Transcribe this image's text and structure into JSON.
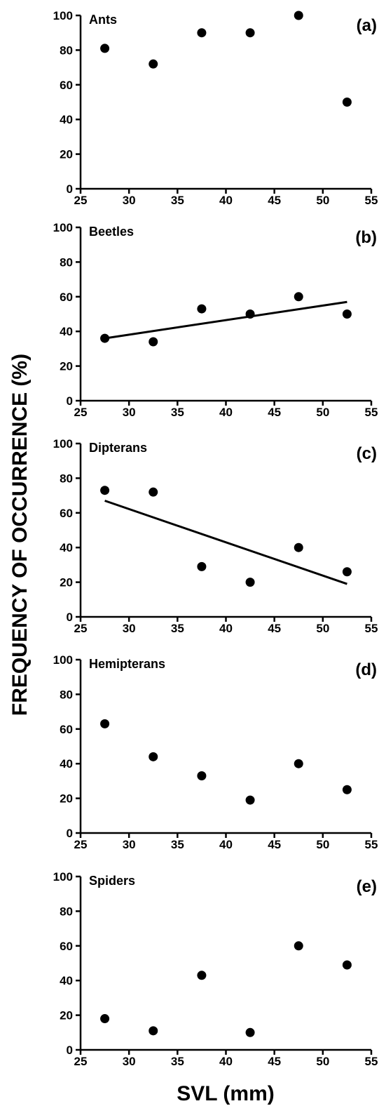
{
  "ylabel": "FREQUENCY OF OCCURRENCE (%)",
  "xlabel": "SVL (mm)",
  "chart_data": [
    {
      "type": "scatter",
      "title": "Ants",
      "panel_label": "(a)",
      "x": [
        27.5,
        32.5,
        37.5,
        42.5,
        47.5,
        52.5
      ],
      "y": [
        81,
        72,
        90,
        90,
        100,
        50
      ],
      "xlim": [
        25,
        55
      ],
      "ylim": [
        0,
        100
      ],
      "xticks": [
        25,
        30,
        35,
        40,
        45,
        50,
        55
      ],
      "yticks": [
        0,
        20,
        40,
        60,
        80,
        100
      ],
      "trendline": null
    },
    {
      "type": "scatter",
      "title": "Beetles",
      "panel_label": "(b)",
      "x": [
        27.5,
        32.5,
        37.5,
        42.5,
        47.5,
        52.5
      ],
      "y": [
        36,
        34,
        53,
        50,
        60,
        50
      ],
      "xlim": [
        25,
        55
      ],
      "ylim": [
        0,
        100
      ],
      "xticks": [
        25,
        30,
        35,
        40,
        45,
        50,
        55
      ],
      "yticks": [
        0,
        20,
        40,
        60,
        80,
        100
      ],
      "trendline": {
        "x": [
          27.5,
          52.5
        ],
        "y": [
          36,
          57
        ]
      }
    },
    {
      "type": "scatter",
      "title": "Dipterans",
      "panel_label": "(c)",
      "x": [
        27.5,
        32.5,
        37.5,
        42.5,
        47.5,
        52.5
      ],
      "y": [
        73,
        72,
        29,
        20,
        40,
        26
      ],
      "xlim": [
        25,
        55
      ],
      "ylim": [
        0,
        100
      ],
      "xticks": [
        25,
        30,
        35,
        40,
        45,
        50,
        55
      ],
      "yticks": [
        0,
        20,
        40,
        60,
        80,
        100
      ],
      "trendline": {
        "x": [
          27.5,
          52.5
        ],
        "y": [
          67,
          19
        ]
      }
    },
    {
      "type": "scatter",
      "title": "Hemipterans",
      "panel_label": "(d)",
      "x": [
        27.5,
        32.5,
        37.5,
        42.5,
        47.5,
        52.5
      ],
      "y": [
        63,
        44,
        33,
        19,
        40,
        25
      ],
      "xlim": [
        25,
        55
      ],
      "ylim": [
        0,
        100
      ],
      "xticks": [
        25,
        30,
        35,
        40,
        45,
        50,
        55
      ],
      "yticks": [
        0,
        20,
        40,
        60,
        80,
        100
      ],
      "trendline": null
    },
    {
      "type": "scatter",
      "title": "Spiders",
      "panel_label": "(e)",
      "x": [
        27.5,
        32.5,
        37.5,
        42.5,
        47.5,
        52.5
      ],
      "y": [
        18,
        11,
        43,
        10,
        60,
        49
      ],
      "xlim": [
        25,
        55
      ],
      "ylim": [
        0,
        100
      ],
      "xticks": [
        25,
        30,
        35,
        40,
        45,
        50,
        55
      ],
      "yticks": [
        0,
        20,
        40,
        60,
        80,
        100
      ],
      "trendline": null
    }
  ]
}
